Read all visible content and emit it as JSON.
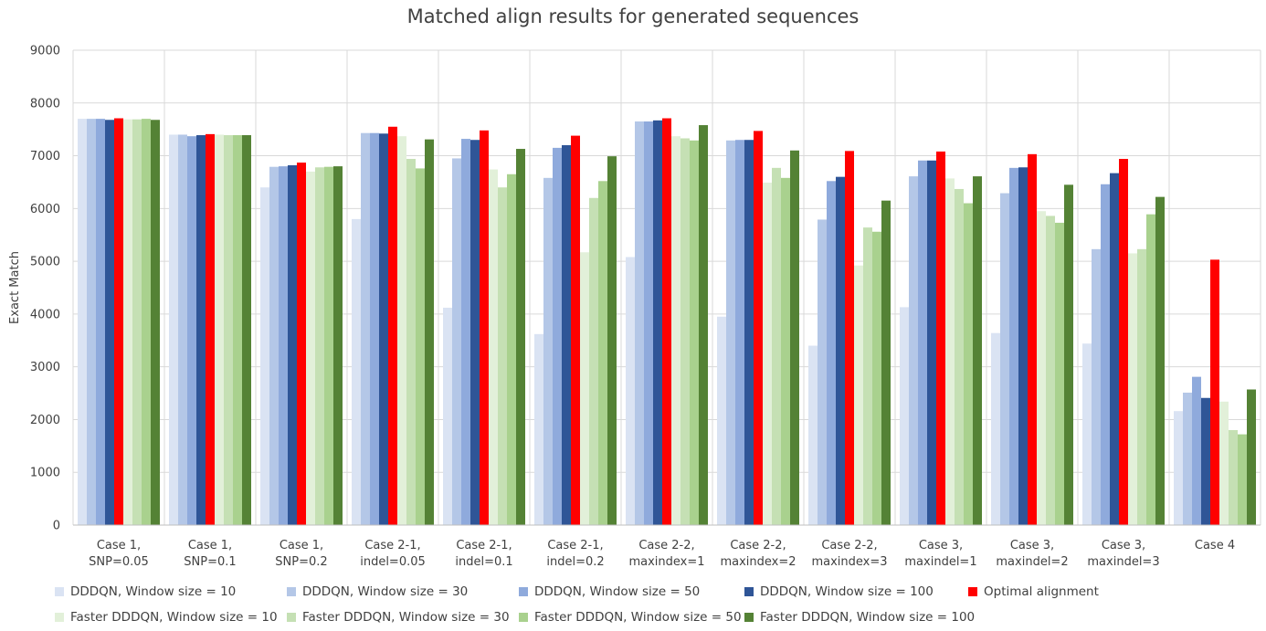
{
  "chart_data": {
    "type": "bar",
    "title": "Matched align results for generated sequences",
    "ylabel": "Exact Match",
    "xlabel": "",
    "ylim": [
      0,
      9000
    ],
    "yticks": [
      0,
      1000,
      2000,
      3000,
      4000,
      5000,
      6000,
      7000,
      8000,
      9000
    ],
    "grid": "vertical and horizontal",
    "legend_position": "bottom",
    "categories": [
      [
        "Case 1,",
        "SNP=0.05"
      ],
      [
        "Case 1,",
        "SNP=0.1"
      ],
      [
        "Case 1,",
        "SNP=0.2"
      ],
      [
        "Case 2-1,",
        "indel=0.05"
      ],
      [
        "Case 2-1,",
        "indel=0.1"
      ],
      [
        "Case 2-1,",
        "indel=0.2"
      ],
      [
        "Case 2-2,",
        "maxindex=1"
      ],
      [
        "Case 2-2,",
        "maxindex=2"
      ],
      [
        "Case 2-2,",
        "maxindex=3"
      ],
      [
        "Case 3,",
        "maxindel=1"
      ],
      [
        "Case 3,",
        "maxindel=2"
      ],
      [
        "Case 3,",
        "maxindel=3"
      ],
      [
        "Case 4"
      ]
    ],
    "series": [
      {
        "name": "DDDQN, Window size = 10",
        "color": "#dae3f3",
        "values": [
          7700,
          7400,
          6400,
          5800,
          4120,
          3620,
          5080,
          3950,
          3400,
          4130,
          3640,
          3440,
          2160
        ]
      },
      {
        "name": "DDDQN, Window size = 30",
        "color": "#b4c7e7",
        "values": [
          7700,
          7400,
          6790,
          7430,
          6950,
          6580,
          7650,
          7290,
          5790,
          6610,
          6290,
          5230,
          2510
        ]
      },
      {
        "name": "DDDQN, Window size = 50",
        "color": "#8faadc",
        "values": [
          7700,
          7370,
          6800,
          7430,
          7320,
          7150,
          7650,
          7300,
          6520,
          6910,
          6770,
          6460,
          2810
        ]
      },
      {
        "name": "DDDQN, Window size = 100",
        "color": "#2f5597",
        "values": [
          7680,
          7390,
          6820,
          7420,
          7300,
          7200,
          7670,
          7300,
          6600,
          6910,
          6780,
          6670,
          2410
        ]
      },
      {
        "name": "Optimal alignment",
        "color": "#ff0000",
        "values": [
          7710,
          7410,
          6870,
          7550,
          7480,
          7380,
          7710,
          7470,
          7090,
          7080,
          7030,
          6940,
          5030
        ]
      },
      {
        "name": "Faster DDDQN, Window size = 10",
        "color": "#e2f0d9",
        "values": [
          7690,
          7400,
          6700,
          7370,
          6740,
          5170,
          7370,
          6490,
          4920,
          6570,
          5950,
          5150,
          2340
        ]
      },
      {
        "name": "Faster DDDQN, Window size = 30",
        "color": "#c5e0b4",
        "values": [
          7690,
          7390,
          6780,
          6940,
          6400,
          6200,
          7330,
          6770,
          5640,
          6370,
          5860,
          5230,
          1800
        ]
      },
      {
        "name": "Faster DDDQN, Window size = 50",
        "color": "#a9d18e",
        "values": [
          7700,
          7390,
          6790,
          6760,
          6650,
          6520,
          7290,
          6580,
          5560,
          6100,
          5730,
          5890,
          1720
        ]
      },
      {
        "name": "Faster DDDQN, Window size = 100",
        "color": "#548235",
        "values": [
          7680,
          7390,
          6800,
          7310,
          7130,
          6990,
          7580,
          7100,
          6150,
          6610,
          6450,
          6220,
          2570
        ]
      }
    ]
  }
}
